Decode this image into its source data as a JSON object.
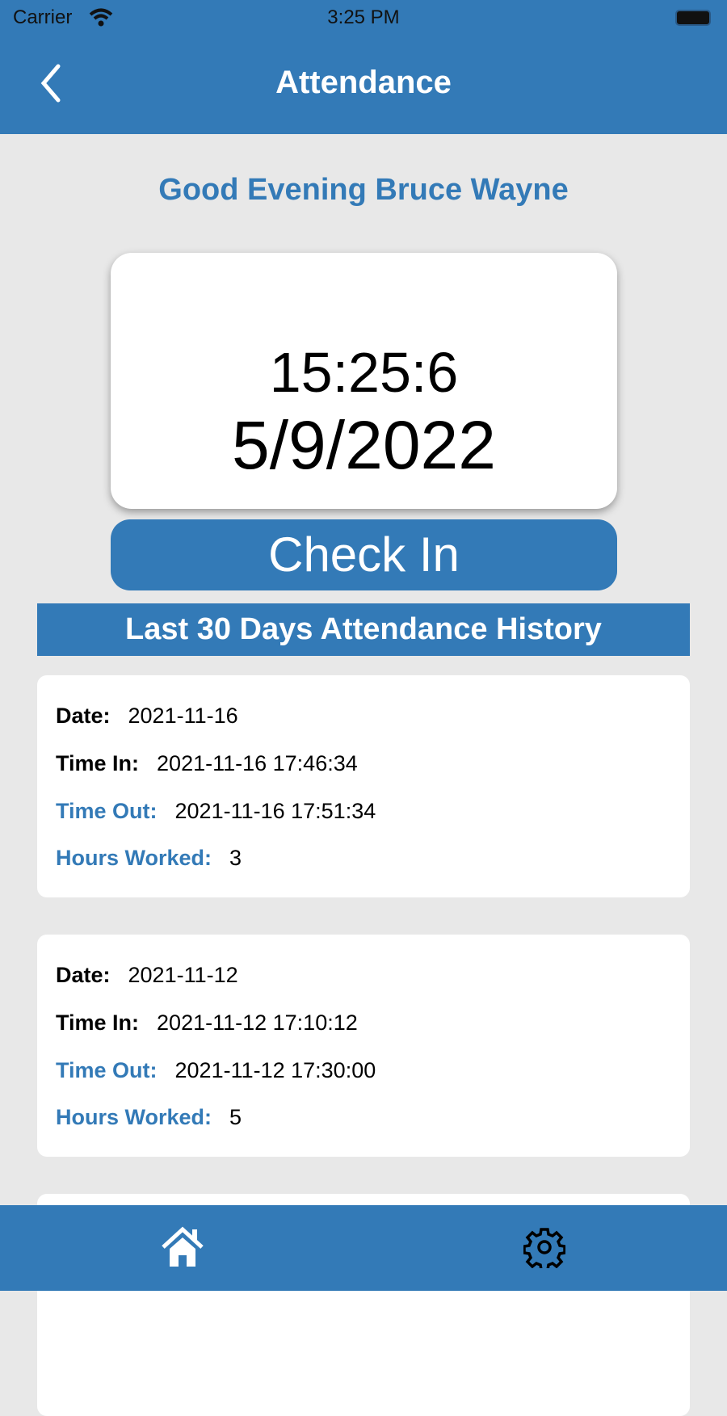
{
  "status_bar": {
    "carrier": "Carrier",
    "time": "3:25 PM"
  },
  "nav": {
    "title": "Attendance"
  },
  "greeting": "Good Evening Bruce Wayne",
  "clock": {
    "time": "15:25:6",
    "date": "5/9/2022"
  },
  "check_in_label": "Check In",
  "history": {
    "title": "Last 30 Days Attendance History",
    "labels": {
      "date": "Date:",
      "time_in": "Time In:",
      "time_out": "Time Out:",
      "hours": "Hours Worked:"
    },
    "records": [
      {
        "date": "2021-11-16",
        "time_in": "2021-11-16 17:46:34",
        "time_out": "2021-11-16 17:51:34",
        "hours": "3"
      },
      {
        "date": "2021-11-12",
        "time_in": "2021-11-12 17:10:12",
        "time_out": "2021-11-12 17:30:00",
        "hours": "5"
      }
    ]
  },
  "tabbar": {
    "items": [
      "home-icon",
      "gear-icon"
    ]
  },
  "colors": {
    "primary": "#337ab7",
    "background": "#e8e8e8"
  }
}
